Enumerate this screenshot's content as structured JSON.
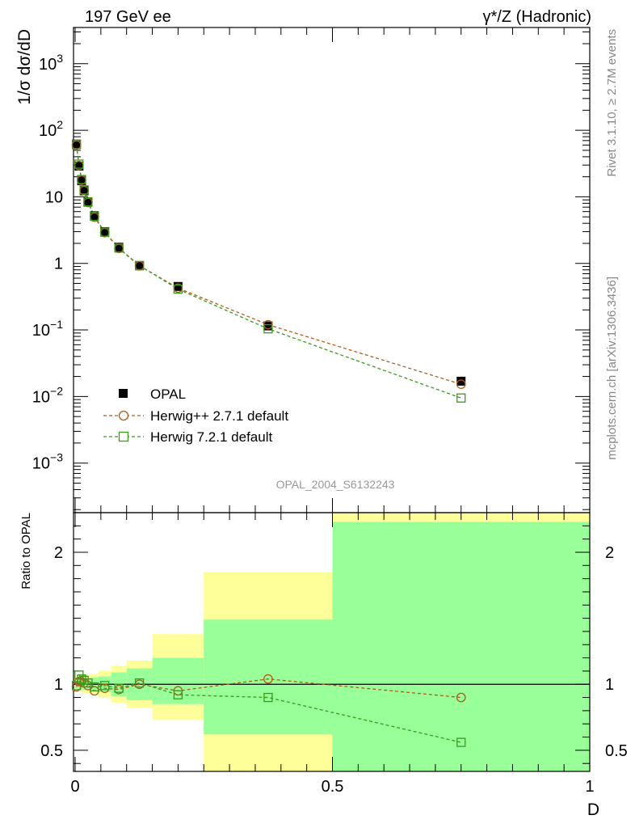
{
  "header": {
    "title_left": "197 GeV ee",
    "title_right": "γ*/Z (Hadronic)"
  },
  "side_labels": {
    "rivet": "Rivet 3.1.10, ≥ 2.7M events",
    "mcplots": "mcplots.cern.ch [arXiv:1306.3436]"
  },
  "analysis_id": "OPAL_2004_S6132243",
  "colors": {
    "data": "#000000",
    "herwigpp": "#b05a1a",
    "herwig7": "#3a9a1a",
    "band_outer": "#ffff99",
    "band_inner": "#99ff99"
  },
  "chart_data": [
    {
      "type": "line",
      "ylabel": "1/σ dσ/dD",
      "xlabel": "D",
      "ylog": true,
      "ylim": [
        0.00018,
        3500
      ],
      "xlim": [
        0,
        1
      ],
      "y_ticks": [
        {
          "value": 0.001,
          "base": "10",
          "exp": "−3"
        },
        {
          "value": 0.01,
          "base": "10",
          "exp": "−2"
        },
        {
          "value": 0.1,
          "base": "10",
          "exp": "−1"
        },
        {
          "value": 1,
          "base": "1",
          "exp": ""
        },
        {
          "value": 10,
          "base": "10",
          "exp": ""
        },
        {
          "value": 100,
          "base": "10",
          "exp": "2"
        },
        {
          "value": 1000,
          "base": "10",
          "exp": "3"
        }
      ],
      "legend_position": "bottom-left",
      "x": [
        0.0025,
        0.0075,
        0.0125,
        0.0175,
        0.025,
        0.0375,
        0.0575,
        0.085,
        0.125,
        0.2,
        0.375,
        0.75
      ],
      "series": [
        {
          "name": "OPAL",
          "marker": "filled-square",
          "values": [
            62,
            29,
            17.5,
            12.3,
            8.3,
            5.2,
            3.0,
            1.75,
            0.92,
            0.45,
            0.115,
            0.017
          ]
        },
        {
          "name": "Herwig++ 2.7.1 default",
          "marker": "open-circle",
          "values": [
            60,
            29.5,
            17.8,
            12.4,
            8.2,
            4.95,
            2.9,
            1.68,
            0.92,
            0.425,
            0.12,
            0.0153
          ]
        },
        {
          "name": "Herwig 7.2.1 default",
          "marker": "open-square",
          "values": [
            61,
            31,
            18.2,
            12.7,
            8.4,
            5.1,
            2.95,
            1.7,
            0.93,
            0.41,
            0.104,
            0.0095
          ]
        }
      ]
    },
    {
      "type": "line",
      "ylabel": "Ratio to OPAL",
      "xlabel": "D",
      "xlim": [
        0,
        1
      ],
      "ylim": [
        0.34,
        2.3
      ],
      "y_ticks": [
        "0.5",
        "1",
        "2"
      ],
      "x_ticks": [
        "0",
        "0.5",
        "1"
      ],
      "reference_line": 1,
      "bands": [
        {
          "x0": 0.0,
          "x1": 0.005,
          "inner": [
            0.97,
            1.03
          ],
          "outer": [
            0.95,
            1.05
          ]
        },
        {
          "x0": 0.005,
          "x1": 0.01,
          "inner": [
            0.97,
            1.03
          ],
          "outer": [
            0.95,
            1.05
          ]
        },
        {
          "x0": 0.01,
          "x1": 0.015,
          "inner": [
            0.96,
            1.04
          ],
          "outer": [
            0.94,
            1.06
          ]
        },
        {
          "x0": 0.015,
          "x1": 0.02,
          "inner": [
            0.96,
            1.04
          ],
          "outer": [
            0.93,
            1.07
          ]
        },
        {
          "x0": 0.02,
          "x1": 0.03,
          "inner": [
            0.96,
            1.04
          ],
          "outer": [
            0.93,
            1.07
          ]
        },
        {
          "x0": 0.03,
          "x1": 0.045,
          "inner": [
            0.95,
            1.05
          ],
          "outer": [
            0.92,
            1.08
          ]
        },
        {
          "x0": 0.045,
          "x1": 0.07,
          "inner": [
            0.94,
            1.06
          ],
          "outer": [
            0.9,
            1.1
          ]
        },
        {
          "x0": 0.07,
          "x1": 0.1,
          "inner": [
            0.91,
            1.09
          ],
          "outer": [
            0.86,
            1.14
          ]
        },
        {
          "x0": 0.1,
          "x1": 0.15,
          "inner": [
            0.88,
            1.12
          ],
          "outer": [
            0.82,
            1.18
          ]
        },
        {
          "x0": 0.15,
          "x1": 0.25,
          "inner": [
            0.85,
            1.2
          ],
          "outer": [
            0.73,
            1.38
          ]
        },
        {
          "x0": 0.25,
          "x1": 0.5,
          "inner": [
            0.62,
            1.49
          ],
          "outer": [
            0.34,
            1.85
          ]
        },
        {
          "x0": 0.5,
          "x1": 1.0,
          "inner": [
            0.34,
            2.23
          ],
          "outer": [
            0.34,
            2.3
          ]
        }
      ],
      "x": [
        0.0025,
        0.0075,
        0.0125,
        0.0175,
        0.025,
        0.0375,
        0.0575,
        0.085,
        0.125,
        0.2,
        0.375,
        0.75
      ],
      "series": [
        {
          "name": "Herwig++ 2.7.1 default",
          "marker": "open-circle",
          "values": [
            0.98,
            1.02,
            1.02,
            1.01,
            0.99,
            0.95,
            0.97,
            0.96,
            1.0,
            0.95,
            1.04,
            0.9
          ]
        },
        {
          "name": "Herwig 7.2.1 default",
          "marker": "open-square",
          "values": [
            0.99,
            1.07,
            1.04,
            1.03,
            1.01,
            0.98,
            0.99,
            0.97,
            1.01,
            0.92,
            0.9,
            0.56
          ]
        }
      ]
    }
  ]
}
